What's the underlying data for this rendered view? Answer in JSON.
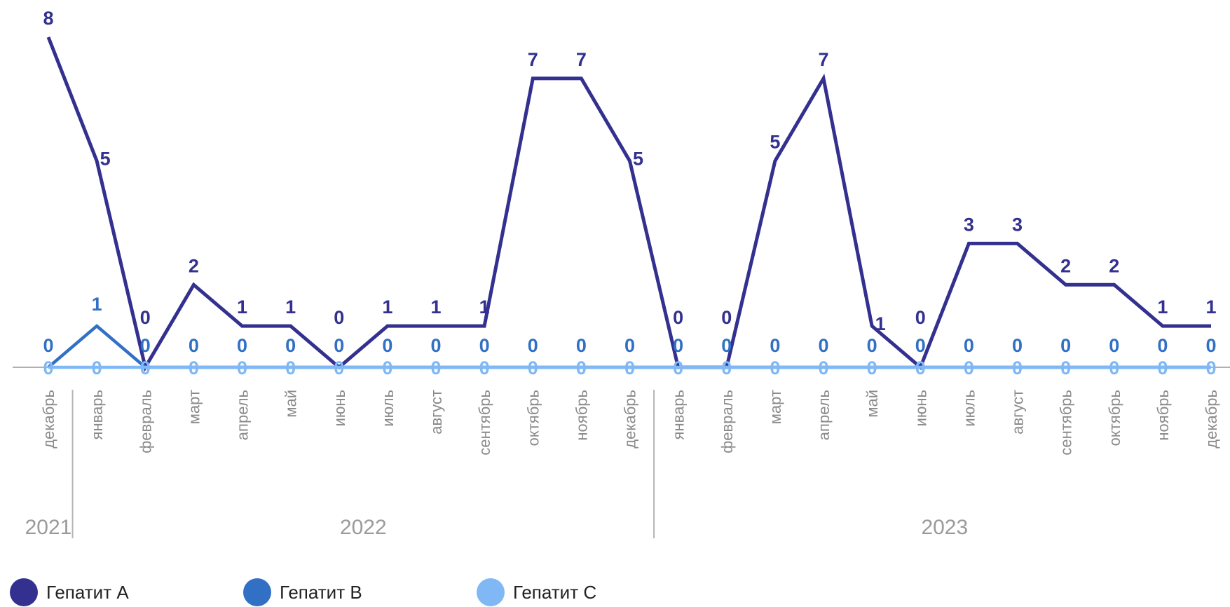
{
  "chart_data": {
    "type": "line",
    "categories": [
      "декабрь",
      "январь",
      "февраль",
      "март",
      "апрель",
      "май",
      "июнь",
      "июль",
      "август",
      "сентябрь",
      "октябрь",
      "ноябрь",
      "декабрь",
      "январь",
      "февраль",
      "март",
      "апрель",
      "май",
      "июнь",
      "июль",
      "август",
      "сентябрь",
      "октябрь",
      "ноябрь",
      "декабрь"
    ],
    "years": [
      {
        "label": "2021",
        "start": 0,
        "end": 0
      },
      {
        "label": "2022",
        "start": 1,
        "end": 12
      },
      {
        "label": "2023",
        "start": 13,
        "end": 24
      }
    ],
    "series": [
      {
        "name": "Гепатит А",
        "color": "#33308f",
        "values": [
          8,
          5,
          0,
          2,
          1,
          1,
          0,
          1,
          1,
          1,
          7,
          7,
          5,
          0,
          0,
          5,
          7,
          1,
          0,
          3,
          3,
          2,
          2,
          1,
          1
        ]
      },
      {
        "name": "Гепатит В",
        "color": "#3170c4",
        "values": [
          0,
          1,
          0,
          0,
          0,
          0,
          0,
          0,
          0,
          0,
          0,
          0,
          0,
          0,
          0,
          0,
          0,
          0,
          0,
          0,
          0,
          0,
          0,
          0,
          0
        ]
      },
      {
        "name": "Гепатит С",
        "color": "#7fb8f5",
        "values": [
          0,
          0,
          0,
          0,
          0,
          0,
          0,
          0,
          0,
          0,
          0,
          0,
          0,
          0,
          0,
          0,
          0,
          0,
          0,
          0,
          0,
          0,
          0,
          0,
          0
        ]
      }
    ],
    "ylim": [
      0,
      8
    ],
    "legend_position": "bottom-left"
  }
}
